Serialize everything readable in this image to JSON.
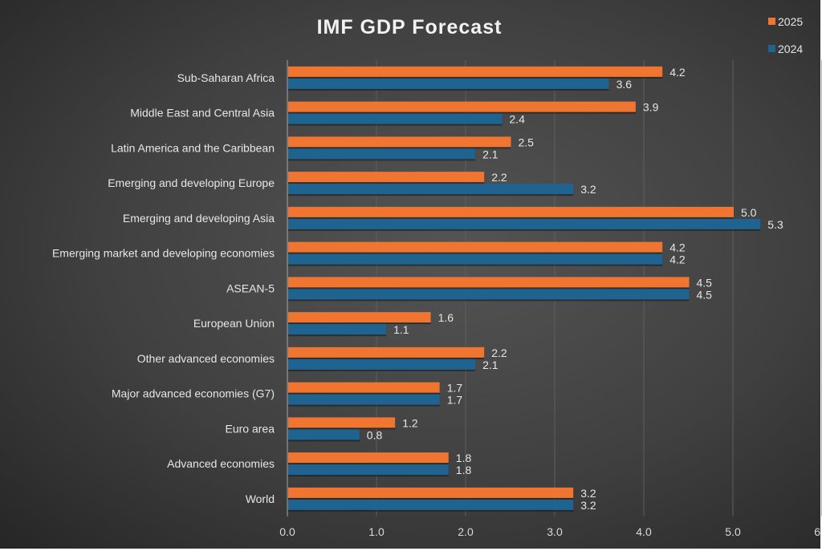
{
  "chart_data": {
    "type": "bar",
    "orientation": "horizontal",
    "title": "IMF GDP Forecast",
    "categories": [
      "Sub-Saharan Africa",
      "Middle East and Central Asia",
      "Latin America and the Caribbean",
      "Emerging and developing Europe",
      "Emerging and developing Asia",
      "Emerging market and developing economies",
      "ASEAN-5",
      "European Union",
      "Other advanced economies",
      "Major advanced economies (G7)",
      "Euro area",
      "Advanced economies",
      "World"
    ],
    "series": [
      {
        "name": "2025",
        "color": "#f07530",
        "values": [
          4.2,
          3.9,
          2.5,
          2.2,
          5.0,
          4.2,
          4.5,
          1.6,
          2.2,
          1.7,
          1.2,
          1.8,
          3.2
        ]
      },
      {
        "name": "2024",
        "color": "#1f6391",
        "values": [
          3.6,
          2.4,
          2.1,
          3.2,
          5.3,
          4.2,
          4.5,
          1.1,
          2.1,
          1.7,
          0.8,
          1.8,
          3.2
        ]
      }
    ],
    "xlim": [
      0,
      6
    ],
    "xticks": [
      "0.0",
      "1.0",
      "2.0",
      "3.0",
      "4.0",
      "5.0",
      "6.0"
    ],
    "grid": true,
    "legend_position": "top-right"
  }
}
